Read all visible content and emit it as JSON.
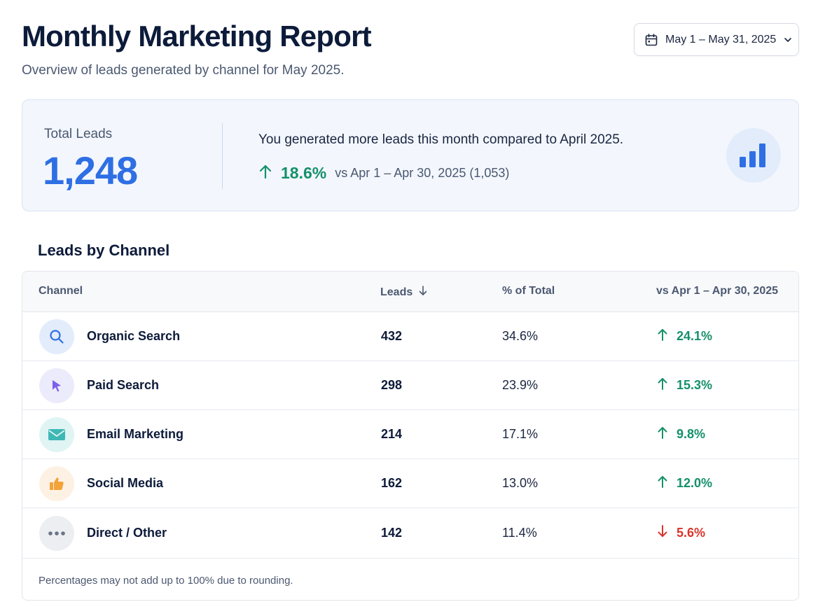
{
  "header": {
    "title": "Monthly Marketing Report",
    "subtitle": "Overview of leads generated by channel for May 2025.",
    "date_range": "May 1 – May 31, 2025"
  },
  "summary": {
    "label": "Total Leads",
    "value": "1,248",
    "message": "You generated more leads this month compared to April 2025.",
    "change_pct": "18.6%",
    "change_direction": "up",
    "comparison": "vs Apr 1 – Apr 30, 2025 (1,053)",
    "icon": "bar-chart-icon"
  },
  "table": {
    "title": "Leads by Channel",
    "columns": [
      "Channel",
      "Leads",
      "% of Total",
      "vs Apr 1 – Apr 30, 2025"
    ],
    "rows": [
      {
        "channel": "Organic Search",
        "icon": "search-icon",
        "leads": "432",
        "share": "34.6%",
        "change": "24.1%",
        "direction": "up"
      },
      {
        "channel": "Paid Search",
        "icon": "cursor-icon",
        "leads": "298",
        "share": "23.9%",
        "change": "15.3%",
        "direction": "up"
      },
      {
        "channel": "Email Marketing",
        "icon": "envelope-icon",
        "leads": "214",
        "share": "17.1%",
        "change": "9.8%",
        "direction": "up"
      },
      {
        "channel": "Social Media",
        "icon": "thumbs-up-icon",
        "leads": "162",
        "share": "13.0%",
        "change": "12.0%",
        "direction": "up"
      },
      {
        "channel": "Direct / Other",
        "icon": "more-dots-icon",
        "leads": "142",
        "share": "11.4%",
        "change": "5.6%",
        "direction": "down"
      }
    ],
    "footnote": "Percentages may not add up to 100% due to rounding."
  },
  "colors": {
    "accent_blue": "#2f6fe4",
    "positive_green": "#15906a",
    "negative_red": "#d9342b"
  }
}
